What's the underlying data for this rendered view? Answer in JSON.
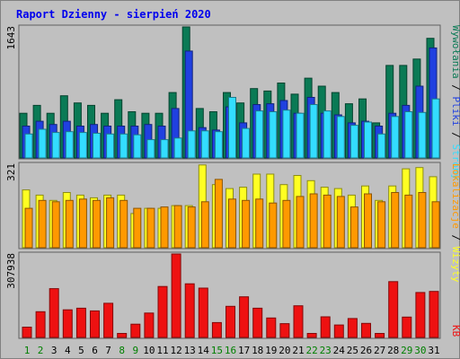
{
  "title": "Raport Dzienny -  sierpień 2020",
  "colors": {
    "background": "#c0c0c0",
    "title": "#0000ee",
    "wywolania": "#0a7a55",
    "pliki": "#2040e0",
    "strony": "#33ddff",
    "wizyty": "#ffff22",
    "lokalizacje": "#ff9900",
    "kb": "#ee1111",
    "weekend": "#008000",
    "weekday": "#000000"
  },
  "chart_data": [
    {
      "type": "bar",
      "name": "top",
      "y_tick_label": "1643",
      "ylim": [
        0,
        1643
      ],
      "categories": [
        "1",
        "2",
        "3",
        "4",
        "5",
        "6",
        "7",
        "8",
        "9",
        "10",
        "11",
        "12",
        "13",
        "14",
        "15",
        "16",
        "17",
        "18",
        "19",
        "20",
        "21",
        "22",
        "23",
        "24",
        "25",
        "26",
        "27",
        "28",
        "29",
        "30",
        "31"
      ],
      "legend_right": [
        {
          "key": "wywolania",
          "text": "Wywołania"
        },
        {
          "key": "sep",
          "text": " / "
        },
        {
          "key": "pliki",
          "text": "Pliki"
        },
        {
          "key": "sep",
          "text": " / "
        },
        {
          "key": "strony",
          "text": "Strony"
        }
      ],
      "series": [
        {
          "name": "Wywołania",
          "color_key": "wywolania",
          "values": [
            560,
            660,
            560,
            780,
            690,
            660,
            560,
            730,
            580,
            560,
            560,
            820,
            1643,
            620,
            580,
            820,
            690,
            870,
            840,
            940,
            800,
            1000,
            900,
            820,
            680,
            740,
            440,
            1160,
            1160,
            1240,
            1500
          ]
        },
        {
          "name": "Pliki",
          "color_key": "pliki",
          "values": [
            400,
            460,
            420,
            460,
            400,
            420,
            400,
            400,
            400,
            420,
            400,
            620,
            1340,
            380,
            350,
            640,
            440,
            670,
            680,
            720,
            560,
            760,
            560,
            540,
            440,
            460,
            400,
            560,
            660,
            900,
            1380
          ]
        },
        {
          "name": "Strony",
          "color_key": "strony",
          "values": [
            300,
            360,
            320,
            330,
            320,
            310,
            300,
            300,
            290,
            230,
            230,
            250,
            340,
            340,
            330,
            760,
            370,
            590,
            580,
            600,
            560,
            670,
            590,
            520,
            410,
            450,
            300,
            520,
            580,
            570,
            740
          ]
        }
      ]
    },
    {
      "type": "bar",
      "name": "middle",
      "y_tick_label": "321",
      "ylim": [
        0,
        321
      ],
      "categories": [
        "1",
        "2",
        "3",
        "4",
        "5",
        "6",
        "7",
        "8",
        "9",
        "10",
        "11",
        "12",
        "13",
        "14",
        "15",
        "16",
        "17",
        "18",
        "19",
        "20",
        "21",
        "22",
        "23",
        "24",
        "25",
        "26",
        "27",
        "28",
        "29",
        "30",
        "31"
      ],
      "legend_right": [
        {
          "key": "lokalizacje",
          "text": "Lokalizacje"
        },
        {
          "key": "sep",
          "text": " / "
        },
        {
          "key": "wizyty",
          "text": "Wizyty"
        }
      ],
      "series": [
        {
          "name": "Wizyty",
          "color_key": "wizyty",
          "values": [
            220,
            200,
            180,
            210,
            200,
            190,
            200,
            200,
            130,
            150,
            150,
            160,
            160,
            315,
            240,
            225,
            230,
            280,
            280,
            240,
            275,
            255,
            230,
            225,
            200,
            235,
            180,
            235,
            300,
            305,
            270
          ]
        },
        {
          "name": "Lokalizacje",
          "color_key": "lokalizacje",
          "values": [
            150,
            180,
            175,
            180,
            185,
            180,
            190,
            180,
            150,
            150,
            155,
            160,
            155,
            175,
            260,
            185,
            180,
            185,
            170,
            180,
            195,
            205,
            200,
            195,
            155,
            205,
            175,
            210,
            200,
            210,
            175
          ]
        }
      ]
    },
    {
      "type": "bar",
      "name": "bottom",
      "y_tick_label": "307938",
      "ylim": [
        0,
        307938
      ],
      "categories": [
        "1",
        "2",
        "3",
        "4",
        "5",
        "6",
        "7",
        "8",
        "9",
        "10",
        "11",
        "12",
        "13",
        "14",
        "15",
        "16",
        "17",
        "18",
        "19",
        "20",
        "21",
        "22",
        "23",
        "24",
        "25",
        "26",
        "27",
        "28",
        "29",
        "30",
        "31"
      ],
      "legend_right": [
        {
          "key": "kb",
          "text": "KB"
        }
      ],
      "series": [
        {
          "name": "KB",
          "color_key": "kb",
          "values": [
            38000,
            95000,
            180000,
            102000,
            108000,
            98000,
            126000,
            15000,
            49000,
            90000,
            188000,
            307938,
            198000,
            182000,
            55000,
            115000,
            150000,
            108000,
            72000,
            51000,
            117000,
            15000,
            76000,
            46000,
            70000,
            52000,
            15000,
            206000,
            75000,
            166000,
            170000
          ]
        }
      ]
    }
  ],
  "x_labels": [
    "1",
    "2",
    "3",
    "4",
    "5",
    "6",
    "7",
    "8",
    "9",
    "10",
    "11",
    "12",
    "13",
    "14",
    "15",
    "16",
    "17",
    "18",
    "19",
    "20",
    "21",
    "22",
    "23",
    "24",
    "25",
    "26",
    "27",
    "28",
    "29",
    "30",
    "31"
  ],
  "weekend_days": [
    1,
    2,
    8,
    9,
    15,
    16,
    22,
    23,
    29,
    30
  ]
}
